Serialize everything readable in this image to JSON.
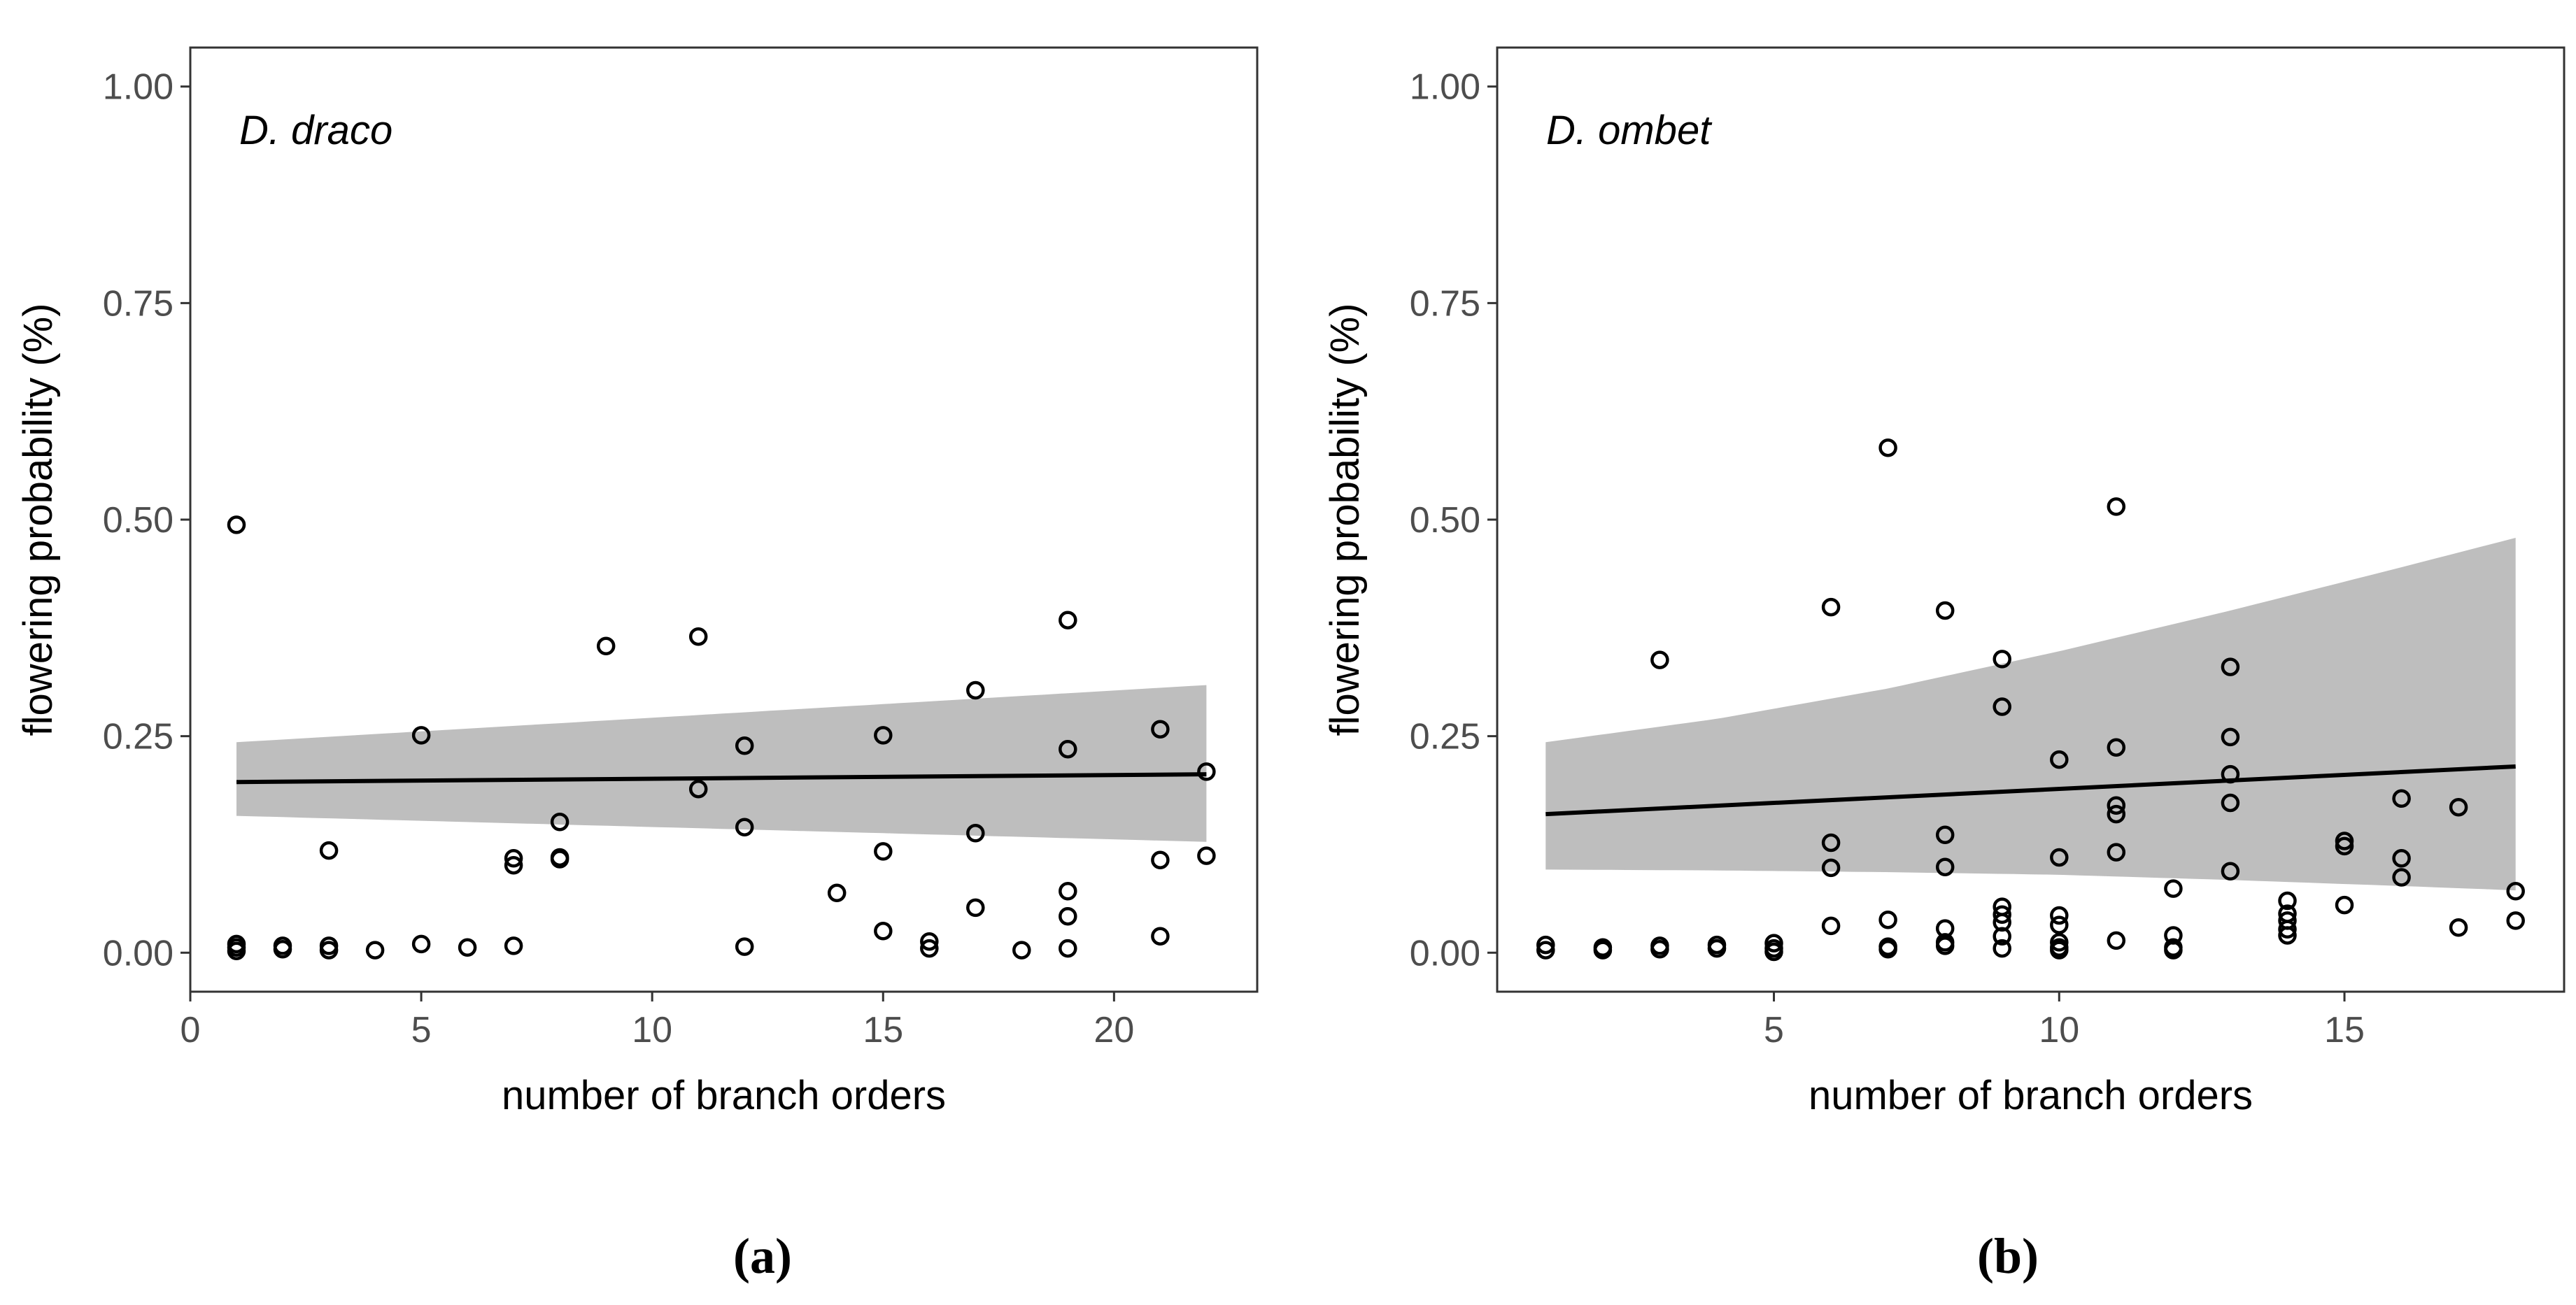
{
  "colors": {
    "ribbon": "#bebebe",
    "line": "#000000",
    "point": "#000000",
    "panel_border": "#333333",
    "tick_text": "#4d4d4d"
  },
  "chart_data": [
    {
      "type": "scatter",
      "caption": "(a)",
      "panel_label": "D. draco",
      "xlabel": "number of branch orders",
      "ylabel": "flowering probability (%)",
      "xlim": [
        0,
        23.1
      ],
      "ylim": [
        -0.045,
        1.045
      ],
      "xticks": [
        0,
        5,
        10,
        15,
        20
      ],
      "xtick_labels": [
        "0",
        "5",
        "10",
        "15",
        "20"
      ],
      "yticks": [
        0,
        0.25,
        0.5,
        0.75,
        1.0
      ],
      "ytick_labels": [
        "0.00",
        "0.25",
        "0.50",
        "0.75",
        "1.00"
      ],
      "grid": false,
      "fit_line": {
        "x": [
          1,
          22
        ],
        "y": [
          0.197,
          0.206
        ]
      },
      "confidence_band": {
        "x": [
          1,
          22
        ],
        "lower": [
          0.158,
          0.128
        ],
        "upper": [
          0.243,
          0.309
        ]
      },
      "points": [
        {
          "x": 1,
          "y": 0.494
        },
        {
          "x": 1,
          "y": 0.01
        },
        {
          "x": 1,
          "y": 0.006
        },
        {
          "x": 1,
          "y": 0.002
        },
        {
          "x": 2,
          "y": 0.008
        },
        {
          "x": 2,
          "y": 0.004
        },
        {
          "x": 3,
          "y": 0.118
        },
        {
          "x": 3,
          "y": 0.008
        },
        {
          "x": 3,
          "y": 0.003
        },
        {
          "x": 4,
          "y": 0.003
        },
        {
          "x": 5,
          "y": 0.251
        },
        {
          "x": 5,
          "y": 0.01
        },
        {
          "x": 6,
          "y": 0.006
        },
        {
          "x": 7,
          "y": 0.109
        },
        {
          "x": 7,
          "y": 0.101
        },
        {
          "x": 7,
          "y": 0.008
        },
        {
          "x": 8,
          "y": 0.151
        },
        {
          "x": 8,
          "y": 0.11
        },
        {
          "x": 8,
          "y": 0.108
        },
        {
          "x": 9,
          "y": 0.354
        },
        {
          "x": 11,
          "y": 0.365
        },
        {
          "x": 11,
          "y": 0.189
        },
        {
          "x": 12,
          "y": 0.239
        },
        {
          "x": 12,
          "y": 0.145
        },
        {
          "x": 12,
          "y": 0.007
        },
        {
          "x": 14,
          "y": 0.069
        },
        {
          "x": 15,
          "y": 0.251
        },
        {
          "x": 15,
          "y": 0.117
        },
        {
          "x": 15,
          "y": 0.025
        },
        {
          "x": 16,
          "y": 0.013
        },
        {
          "x": 16,
          "y": 0.005
        },
        {
          "x": 17,
          "y": 0.303
        },
        {
          "x": 17,
          "y": 0.138
        },
        {
          "x": 17,
          "y": 0.052
        },
        {
          "x": 18,
          "y": 0.003
        },
        {
          "x": 19,
          "y": 0.384
        },
        {
          "x": 19,
          "y": 0.235
        },
        {
          "x": 19,
          "y": 0.071
        },
        {
          "x": 19,
          "y": 0.042
        },
        {
          "x": 19,
          "y": 0.005
        },
        {
          "x": 21,
          "y": 0.258
        },
        {
          "x": 21,
          "y": 0.107
        },
        {
          "x": 21,
          "y": 0.019
        },
        {
          "x": 22,
          "y": 0.209
        },
        {
          "x": 22,
          "y": 0.112
        }
      ]
    },
    {
      "type": "scatter",
      "caption": "(b)",
      "panel_label": "D. ombet",
      "xlabel": "number of branch orders",
      "ylabel": "flowering probability (%)",
      "xlim": [
        0.15,
        18.85
      ],
      "ylim": [
        -0.045,
        1.045
      ],
      "xticks": [
        5,
        10,
        15
      ],
      "xtick_labels": [
        "5",
        "10",
        "15"
      ],
      "yticks": [
        0,
        0.25,
        0.5,
        0.75,
        1.0
      ],
      "ytick_labels": [
        "0.00",
        "0.25",
        "0.50",
        "0.75",
        "1.00"
      ],
      "grid": false,
      "fit_line": {
        "x": [
          1,
          18
        ],
        "y": [
          0.16,
          0.215
        ]
      },
      "confidence_band": {
        "x": [
          1,
          4,
          7,
          10,
          13,
          16,
          18
        ],
        "lower": [
          0.096,
          0.095,
          0.093,
          0.09,
          0.084,
          0.077,
          0.072
        ],
        "upper": [
          0.243,
          0.27,
          0.305,
          0.348,
          0.395,
          0.445,
          0.479
        ]
      },
      "points": [
        {
          "x": 1,
          "y": 0.009
        },
        {
          "x": 1,
          "y": 0.003
        },
        {
          "x": 2,
          "y": 0.006
        },
        {
          "x": 2,
          "y": 0.003
        },
        {
          "x": 3,
          "y": 0.338
        },
        {
          "x": 3,
          "y": 0.008
        },
        {
          "x": 3,
          "y": 0.004
        },
        {
          "x": 4,
          "y": 0.009
        },
        {
          "x": 4,
          "y": 0.005
        },
        {
          "x": 5,
          "y": 0.011
        },
        {
          "x": 5,
          "y": 0.005
        },
        {
          "x": 5,
          "y": 0.001
        },
        {
          "x": 6,
          "y": 0.399
        },
        {
          "x": 6,
          "y": 0.127
        },
        {
          "x": 6,
          "y": 0.098
        },
        {
          "x": 6,
          "y": 0.031
        },
        {
          "x": 7,
          "y": 0.583
        },
        {
          "x": 7,
          "y": 0.038
        },
        {
          "x": 7,
          "y": 0.007
        },
        {
          "x": 7,
          "y": 0.004
        },
        {
          "x": 8,
          "y": 0.395
        },
        {
          "x": 8,
          "y": 0.136
        },
        {
          "x": 8,
          "y": 0.099
        },
        {
          "x": 8,
          "y": 0.028
        },
        {
          "x": 8,
          "y": 0.012
        },
        {
          "x": 8,
          "y": 0.008
        },
        {
          "x": 9,
          "y": 0.339
        },
        {
          "x": 9,
          "y": 0.284
        },
        {
          "x": 9,
          "y": 0.053
        },
        {
          "x": 9,
          "y": 0.044
        },
        {
          "x": 9,
          "y": 0.035
        },
        {
          "x": 9,
          "y": 0.019
        },
        {
          "x": 9,
          "y": 0.005
        },
        {
          "x": 10,
          "y": 0.223
        },
        {
          "x": 10,
          "y": 0.11
        },
        {
          "x": 10,
          "y": 0.043
        },
        {
          "x": 10,
          "y": 0.032
        },
        {
          "x": 10,
          "y": 0.012
        },
        {
          "x": 10,
          "y": 0.006
        },
        {
          "x": 10,
          "y": 0.003
        },
        {
          "x": 11,
          "y": 0.515
        },
        {
          "x": 11,
          "y": 0.237
        },
        {
          "x": 11,
          "y": 0.17
        },
        {
          "x": 11,
          "y": 0.16
        },
        {
          "x": 11,
          "y": 0.116
        },
        {
          "x": 11,
          "y": 0.014
        },
        {
          "x": 12,
          "y": 0.074
        },
        {
          "x": 12,
          "y": 0.02
        },
        {
          "x": 12,
          "y": 0.006
        },
        {
          "x": 12,
          "y": 0.003
        },
        {
          "x": 13,
          "y": 0.33
        },
        {
          "x": 13,
          "y": 0.249
        },
        {
          "x": 13,
          "y": 0.206
        },
        {
          "x": 13,
          "y": 0.173
        },
        {
          "x": 13,
          "y": 0.094
        },
        {
          "x": 14,
          "y": 0.06
        },
        {
          "x": 14,
          "y": 0.045
        },
        {
          "x": 14,
          "y": 0.037
        },
        {
          "x": 14,
          "y": 0.027
        },
        {
          "x": 14,
          "y": 0.02
        },
        {
          "x": 15,
          "y": 0.129
        },
        {
          "x": 15,
          "y": 0.123
        },
        {
          "x": 15,
          "y": 0.055
        },
        {
          "x": 16,
          "y": 0.178
        },
        {
          "x": 16,
          "y": 0.109
        },
        {
          "x": 16,
          "y": 0.087
        },
        {
          "x": 17,
          "y": 0.168
        },
        {
          "x": 17,
          "y": 0.029
        },
        {
          "x": 18,
          "y": 0.071
        },
        {
          "x": 18,
          "y": 0.037
        }
      ]
    }
  ]
}
